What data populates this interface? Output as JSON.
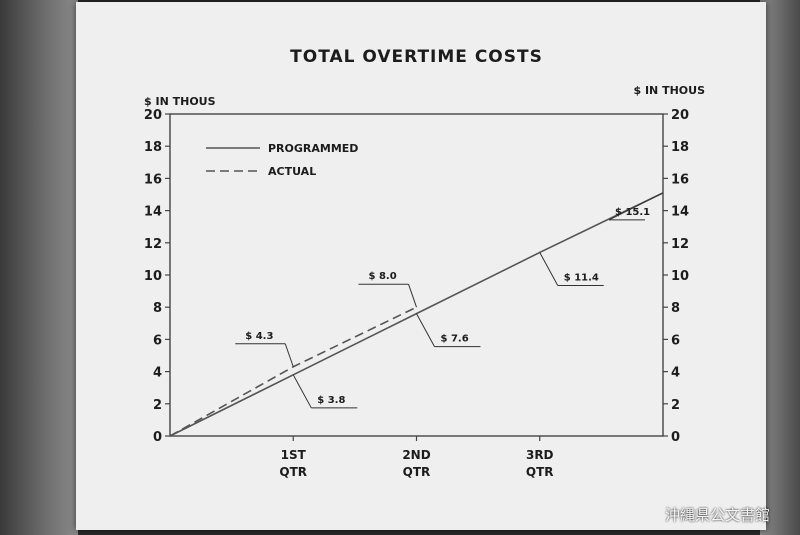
{
  "chart_data": {
    "type": "line",
    "title": "TOTAL OVERTIME COSTS",
    "y_unit_left": "$ IN THOUS",
    "y_unit_right": "$ IN THOUS",
    "ylim": [
      0,
      20
    ],
    "yticks": [
      0,
      2,
      4,
      6,
      8,
      10,
      12,
      14,
      16,
      18,
      20
    ],
    "x_positions": [
      0,
      1,
      2,
      3,
      4
    ],
    "x_ticks": [
      {
        "x": 1,
        "line1": "1ST",
        "line2": "QTR"
      },
      {
        "x": 2,
        "line1": "2ND",
        "line2": "QTR"
      },
      {
        "x": 3,
        "line1": "3RD",
        "line2": "QTR"
      }
    ],
    "legend_placement": "top-left",
    "series": [
      {
        "name": "PROGRAMMED",
        "style": "solid",
        "x": [
          0,
          1,
          2,
          3,
          4
        ],
        "values": [
          0,
          3.8,
          7.6,
          11.4,
          15.1
        ]
      },
      {
        "name": "ACTUAL",
        "style": "dashed",
        "x": [
          0,
          1,
          2
        ],
        "values": [
          0,
          4.3,
          8.0
        ]
      }
    ],
    "annotations": [
      {
        "text": "$ 4.3",
        "series": "ACTUAL",
        "x": 1,
        "y": 4.3,
        "side": "above"
      },
      {
        "text": "$ 3.8",
        "series": "PROGRAMMED",
        "x": 1,
        "y": 3.8,
        "side": "below"
      },
      {
        "text": "$ 8.0",
        "series": "ACTUAL",
        "x": 2,
        "y": 8.0,
        "side": "above"
      },
      {
        "text": "$ 7.6",
        "series": "PROGRAMMED",
        "x": 2,
        "y": 7.6,
        "side": "below"
      },
      {
        "text": "$ 11.4",
        "series": "PROGRAMMED",
        "x": 3,
        "y": 11.4,
        "side": "below"
      },
      {
        "text": "$ 15.1",
        "series": "PROGRAMMED",
        "x": 4,
        "y": 15.1,
        "side": "left"
      }
    ],
    "colors": {
      "line": "#555555",
      "paper": "#efefef"
    }
  },
  "watermark": "沖縄県公文書館"
}
